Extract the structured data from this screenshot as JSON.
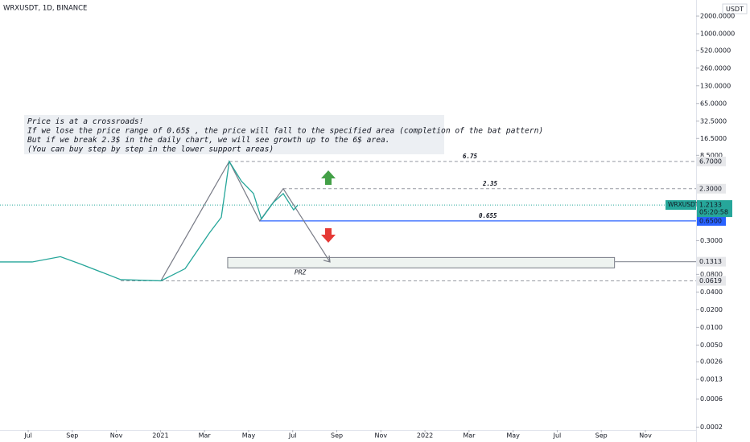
{
  "chart_data": {
    "type": "line",
    "title": "WRXUSDT, 1D, BINANCE",
    "currency": "USDT",
    "log_scale": true,
    "x": [
      -1.28,
      0.18,
      1.46,
      2.37,
      4.2,
      6.02,
      7.12,
      8.21,
      8.76,
      9.12,
      9.67,
      10.22,
      10.58,
      11.13,
      11.57,
      12.04,
      12.23
    ],
    "series": [
      {
        "name": "WRXUSDT",
        "color": "#26a69a",
        "values": [
          0.13,
          0.13,
          0.16,
          0.12,
          0.065,
          0.062,
          0.1,
          0.4,
          0.75,
          6.7,
          3.1,
          1.9,
          0.7,
          1.35,
          1.9,
          1.0,
          1.21
        ]
      }
    ],
    "xlim": [
      -1.28,
      30.3
    ],
    "xticks": [
      {
        "value": 0,
        "label": "Jul"
      },
      {
        "value": 2,
        "label": "Sep"
      },
      {
        "value": 4,
        "label": "Nov"
      },
      {
        "value": 6,
        "label": "2021"
      },
      {
        "value": 8,
        "label": "Mar"
      },
      {
        "value": 10,
        "label": "May"
      },
      {
        "value": 12,
        "label": "Jul"
      },
      {
        "value": 14,
        "label": "Sep"
      },
      {
        "value": 16,
        "label": "Nov"
      },
      {
        "value": 18,
        "label": "2022"
      },
      {
        "value": 20,
        "label": "Mar"
      },
      {
        "value": 22,
        "label": "May"
      },
      {
        "value": 24,
        "label": "Jul"
      },
      {
        "value": 26,
        "label": "Sep"
      },
      {
        "value": 28,
        "label": "Nov"
      }
    ],
    "ylim": [
      0.000179,
      3760
    ],
    "yticks": [
      {
        "value": 2000,
        "label": "2000.0000"
      },
      {
        "value": 1000,
        "label": "1000.0000"
      },
      {
        "value": 520,
        "label": "520.0000"
      },
      {
        "value": 260,
        "label": "260.0000"
      },
      {
        "value": 130,
        "label": "130.0000"
      },
      {
        "value": 65,
        "label": "65.0000"
      },
      {
        "value": 32.5,
        "label": "32.5000"
      },
      {
        "value": 16.5,
        "label": "16.5000"
      },
      {
        "value": 8.5,
        "label": "8.5000"
      },
      {
        "value": 0.3,
        "label": "0.3000"
      },
      {
        "value": 0.08,
        "label": "0.0800"
      },
      {
        "value": 0.04,
        "label": "0.0400"
      },
      {
        "value": 0.02,
        "label": "0.0200"
      },
      {
        "value": 0.01,
        "label": "0.0100"
      },
      {
        "value": 0.005,
        "label": "0.0050"
      },
      {
        "value": 0.0026,
        "label": "0.0026"
      },
      {
        "value": 0.0013,
        "label": "0.0013"
      },
      {
        "value": 0.0006,
        "label": "0.0006"
      },
      {
        "value": 0.0002,
        "label": "0.0002"
      }
    ],
    "levels": [
      {
        "value": 6.7,
        "label": "6.7000",
        "start": 9.12,
        "color": "#9598a1",
        "dashed": true
      },
      {
        "value": 2.3,
        "label": "2.3000",
        "start": 11.57,
        "color": "#9598a1",
        "dashed": true
      },
      {
        "value": 0.65,
        "label": "0.6500",
        "start": 10.5,
        "color": "#2962ff",
        "dashed": false
      },
      {
        "value": 0.1313,
        "label": "0.1313",
        "start": 26.6,
        "color": "#9598a1",
        "dashed": false
      },
      {
        "value": 0.0619,
        "label": "0.0619",
        "start": 4.2,
        "color": "#9598a1",
        "dashed": true
      }
    ],
    "last_price": {
      "value": 1.2133,
      "label": "1.2133",
      "countdown": "05:20:58"
    },
    "notes": [
      "6.75",
      "2.35",
      "0.655"
    ],
    "annotation": [
      "Price is at a crossroads!",
      "If we lose the price range of 0.65$ , the price will fall to the specified area (completion of the bat pattern)",
      "But if we break 2.3$ in the daily chart, we will see growth up to the 6$ area.",
      "(You can buy step by step in the lower support areas)"
    ],
    "pattern": {
      "x": [
        6.02,
        9.12,
        10.5,
        11.57,
        13.69
      ],
      "y": [
        0.062,
        6.7,
        0.65,
        2.3,
        0.13
      ]
    },
    "prz": {
      "label": "PRZ",
      "x": [
        9.05,
        26.6
      ],
      "y": [
        0.103,
        0.155
      ]
    }
  }
}
